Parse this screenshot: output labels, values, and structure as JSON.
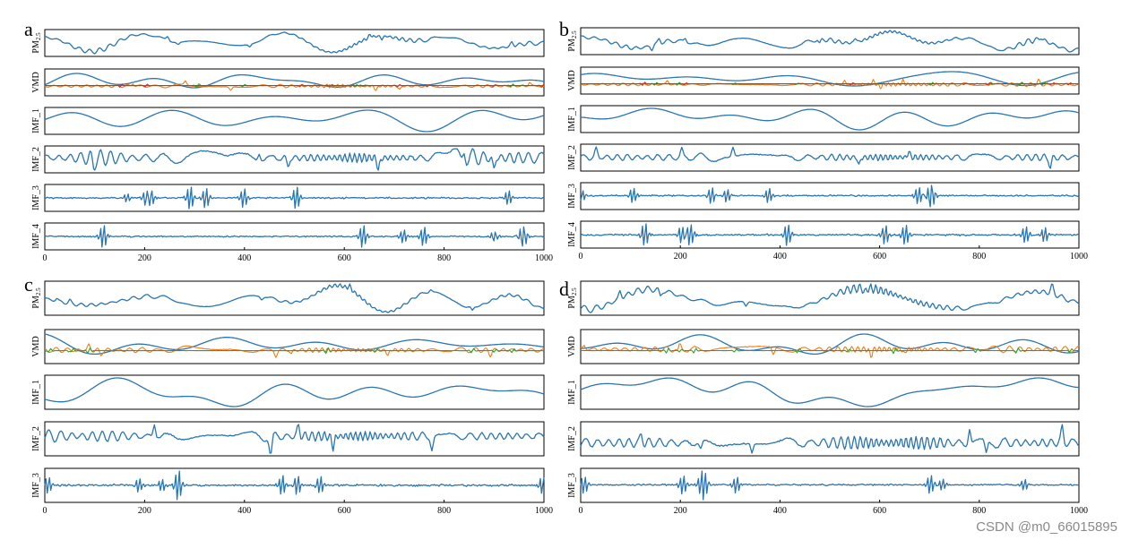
{
  "colors": {
    "blue": "#2a75b3",
    "orange": "#ef7d17",
    "green": "#2ea02c",
    "red": "#d52b21"
  },
  "chart_data": [
    {
      "type": "line",
      "panel": "a",
      "rows": [
        {
          "label": "PM2.5",
          "series": [
            "blue"
          ]
        },
        {
          "label": "VMD",
          "series": [
            "blue",
            "orange",
            "green",
            "red"
          ]
        },
        {
          "label": "IMF_1",
          "series": [
            "blue"
          ]
        },
        {
          "label": "IMF_2",
          "series": [
            "blue"
          ]
        },
        {
          "label": "IMF_3",
          "series": [
            "blue"
          ]
        },
        {
          "label": "IMF_4",
          "series": [
            "blue"
          ]
        }
      ],
      "x_range": [
        0,
        1000
      ],
      "x_ticks": [
        0,
        200,
        400,
        600,
        800,
        1000
      ]
    },
    {
      "type": "line",
      "panel": "b",
      "rows": [
        {
          "label": "PM2.5",
          "series": [
            "blue"
          ]
        },
        {
          "label": "VMD",
          "series": [
            "blue",
            "orange",
            "green",
            "red"
          ]
        },
        {
          "label": "IMF_1",
          "series": [
            "blue"
          ]
        },
        {
          "label": "IMF_2",
          "series": [
            "blue"
          ]
        },
        {
          "label": "IMF_3",
          "series": [
            "blue"
          ]
        },
        {
          "label": "IMF_4",
          "series": [
            "blue"
          ]
        }
      ],
      "x_range": [
        0,
        1000
      ],
      "x_ticks": [
        0,
        200,
        400,
        600,
        800,
        1000
      ]
    },
    {
      "type": "line",
      "panel": "c",
      "rows": [
        {
          "label": "PM2.5",
          "series": [
            "blue"
          ]
        },
        {
          "label": "VMD",
          "series": [
            "blue",
            "orange",
            "green"
          ]
        },
        {
          "label": "IMF_1",
          "series": [
            "blue"
          ]
        },
        {
          "label": "IMF_2",
          "series": [
            "blue"
          ]
        },
        {
          "label": "IMF_3",
          "series": [
            "blue"
          ]
        }
      ],
      "x_range": [
        0,
        1000
      ],
      "x_ticks": [
        0,
        200,
        400,
        600,
        800,
        1000
      ]
    },
    {
      "type": "line",
      "panel": "d",
      "rows": [
        {
          "label": "PM2.5",
          "series": [
            "blue"
          ]
        },
        {
          "label": "VMD",
          "series": [
            "blue",
            "orange",
            "green"
          ]
        },
        {
          "label": "IMF_1",
          "series": [
            "blue"
          ]
        },
        {
          "label": "IMF_2",
          "series": [
            "blue"
          ]
        },
        {
          "label": "IMF_3",
          "series": [
            "blue"
          ]
        }
      ],
      "x_range": [
        0,
        1000
      ],
      "x_ticks": [
        0,
        200,
        400,
        600,
        800,
        1000
      ]
    }
  ],
  "watermark": "CSDN @m0_66015895"
}
